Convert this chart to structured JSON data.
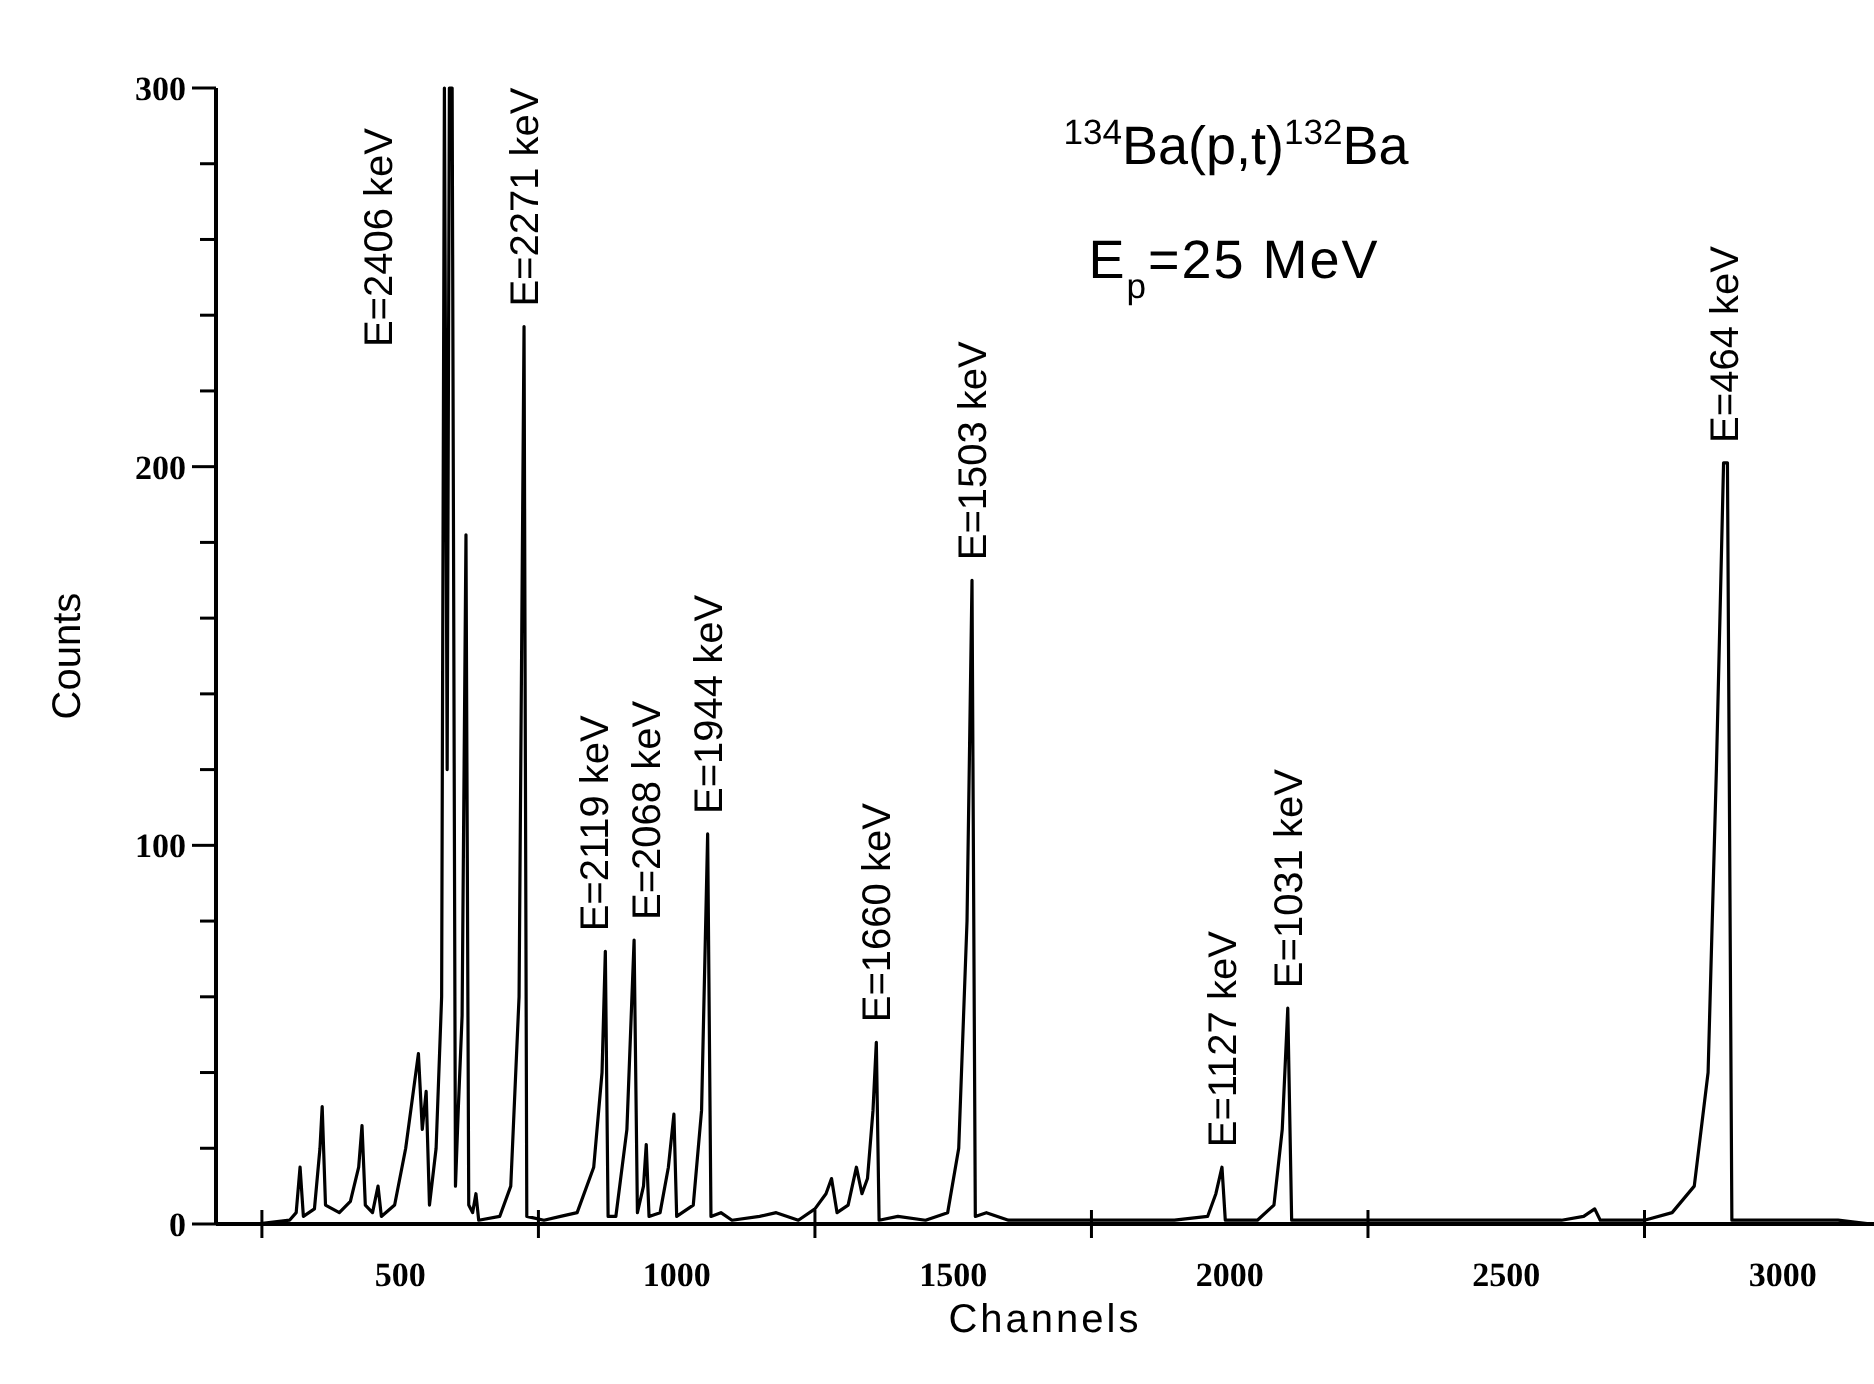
{
  "chart_data": {
    "type": "line",
    "title": "$^{134}$Ba(p,t)$^{132}$Ba",
    "subtitle": "E$_{p}$=25 MeV",
    "xlabel": "Channels",
    "ylabel": "Counts",
    "xlim": [
      167,
      3165
    ],
    "ylim": [
      0,
      300
    ],
    "xticks": [
      {
        "value": 250,
        "label": null
      },
      500,
      {
        "value": 750,
        "label": null
      },
      1000,
      {
        "value": 1250,
        "label": null
      },
      1500,
      {
        "value": 1750,
        "label": null
      },
      2000,
      {
        "value": 2250,
        "label": null
      },
      2500,
      {
        "value": 2750,
        "label": null
      },
      3000
    ],
    "yticks": [
      0,
      {
        "value": 20,
        "label": null
      },
      {
        "value": 40,
        "label": null
      },
      {
        "value": 60,
        "label": null
      },
      {
        "value": 80,
        "label": null
      },
      100,
      {
        "value": 120,
        "label": null
      },
      {
        "value": 140,
        "label": null
      },
      {
        "value": 160,
        "label": null
      },
      {
        "value": 180,
        "label": null
      },
      200,
      {
        "value": 220,
        "label": null
      },
      {
        "value": 240,
        "label": null
      },
      {
        "value": 260,
        "label": null
      },
      {
        "value": 280,
        "label": null
      },
      300
    ],
    "grid": false,
    "marker": "none",
    "line_style": "solid",
    "series": [
      {
        "color": "#000000",
        "x": [
          240,
          300,
          312,
          319,
          325,
          345,
          355,
          359,
          365,
          390,
          410,
          425,
          431,
          437,
          450,
          460,
          466,
          490,
          510,
          533,
          540,
          547,
          553,
          565,
          575,
          580,
          585,
          589,
          594,
          600,
          605,
          612,
          619,
          624,
          631,
          637,
          642,
          680,
          700,
          715,
          724,
          729,
          760,
          790,
          820,
          850,
          865,
          871,
          876,
          890,
          910,
          923,
          929,
          940,
          945,
          950,
          970,
          985,
          995,
          1000,
          1030,
          1045,
          1056,
          1062,
          1080,
          1100,
          1150,
          1180,
          1200,
          1220,
          1250,
          1270,
          1280,
          1290,
          1310,
          1325,
          1335,
          1345,
          1355,
          1361,
          1366,
          1400,
          1450,
          1490,
          1510,
          1525,
          1534,
          1540,
          1560,
          1600,
          1700,
          1800,
          1900,
          1960,
          1975,
          1986,
          1992,
          2050,
          2080,
          2095,
          2105,
          2112,
          2200,
          2300,
          2400,
          2500,
          2600,
          2640,
          2660,
          2670,
          2750,
          2800,
          2840,
          2865,
          2880,
          2893,
          2900,
          2908,
          3000,
          3100,
          3160
        ],
        "values": [
          0,
          1,
          3,
          15,
          2,
          4,
          20,
          31,
          5,
          3,
          6,
          15,
          26,
          5,
          3,
          10,
          2,
          5,
          20,
          45,
          25,
          35,
          5,
          20,
          60,
          300,
          120,
          300,
          300,
          10,
          30,
          55,
          182,
          5,
          3,
          8,
          1,
          2,
          10,
          60,
          237,
          2,
          1,
          2,
          3,
          15,
          40,
          72,
          2,
          2,
          25,
          75,
          3,
          10,
          21,
          2,
          3,
          15,
          29,
          2,
          5,
          30,
          103,
          2,
          3,
          1,
          2,
          3,
          2,
          1,
          4,
          8,
          12,
          3,
          5,
          15,
          8,
          12,
          30,
          48,
          1,
          2,
          1,
          3,
          20,
          80,
          170,
          2,
          3,
          1,
          1,
          1,
          1,
          2,
          8,
          15,
          1,
          1,
          5,
          25,
          57,
          1,
          1,
          1,
          1,
          1,
          1,
          2,
          4,
          1,
          1,
          3,
          10,
          40,
          120,
          201,
          201,
          1,
          1,
          1,
          0
        ]
      }
    ],
    "annotations": [
      {
        "text": "E=2406 keV",
        "x": 580,
        "y": 300
      },
      {
        "text": "E=2271 keV",
        "x": 724,
        "y": 237
      },
      {
        "text": "E=2119 keV",
        "x": 871,
        "y": 72
      },
      {
        "text": "E=2068 keV",
        "x": 923,
        "y": 75
      },
      {
        "text": "E=1944 keV",
        "x": 1056,
        "y": 103
      },
      {
        "text": "E=1660 keV",
        "x": 1361,
        "y": 48
      },
      {
        "text": "E=1503 keV",
        "x": 1534,
        "y": 170
      },
      {
        "text": "E=1127 keV",
        "x": 1986,
        "y": 15
      },
      {
        "text": "E=1031 keV",
        "x": 2105,
        "y": 57
      },
      {
        "text": "E=464 keV",
        "x": 2893,
        "y": 201
      }
    ]
  }
}
